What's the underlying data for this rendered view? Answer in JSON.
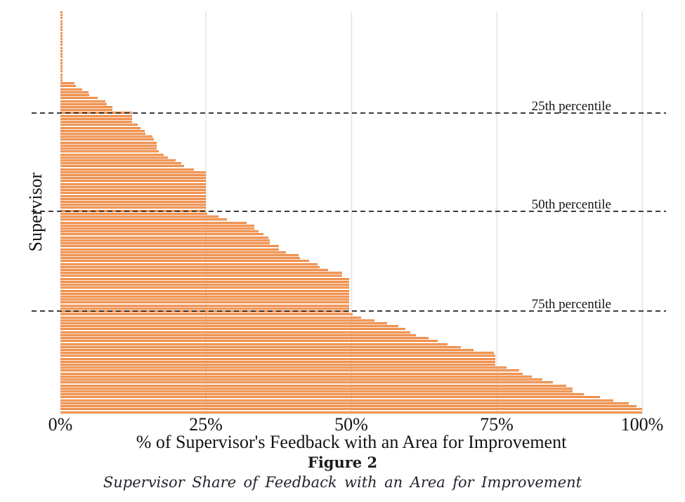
{
  "figure": {
    "figure_label": "Figure 2",
    "caption": "Supervisor Share of Feedback with an Area for Improvement"
  },
  "colors": {
    "bar_fill": "#F9B37C",
    "bar_edge": "#E8772B",
    "gridline": "#E9E9E9",
    "reference_line": "#3D3D3D"
  },
  "chart_data": {
    "type": "bar",
    "orientation": "horizontal",
    "title": "",
    "xlabel": "% of Supervisor's Feedback with an Area for Improvement",
    "ylabel": "Supervisor",
    "xlim": [
      0,
      100
    ],
    "grid": "vertical gridlines at x ticks, no panel border",
    "legend": "none",
    "x_ticks": [
      {
        "label": "0%",
        "value": 0
      },
      {
        "label": "25%",
        "value": 25
      },
      {
        "label": "50%",
        "value": 50
      },
      {
        "label": "75%",
        "value": 75
      },
      {
        "label": "100%",
        "value": 100
      }
    ],
    "series_note": "136 supervisors, one thin horizontal bar each, sorted ascending by share; y axis has no tick labels",
    "values_pct": [
      0.3,
      0.3,
      0.3,
      0.3,
      0.3,
      0.3,
      0.3,
      0.3,
      0.3,
      0.3,
      0.3,
      0.3,
      0.3,
      0.3,
      0.3,
      0.3,
      0.3,
      0.3,
      0.3,
      0.3,
      0.3,
      0.3,
      0.3,
      0.3,
      2.4,
      2.7,
      3.7,
      4.8,
      4.9,
      6.4,
      7.7,
      8.0,
      8.9,
      8.9,
      12.3,
      12.3,
      12.3,
      12.3,
      13.3,
      13.8,
      14.5,
      14.6,
      15.8,
      16.1,
      16.5,
      16.5,
      16.5,
      16.9,
      17.8,
      18.5,
      19.8,
      20.8,
      21.3,
      23.0,
      25.0,
      25.0,
      25.0,
      25.0,
      25.0,
      25.0,
      25.0,
      25.0,
      25.0,
      25.0,
      25.0,
      25.0,
      25.0,
      25.0,
      25.2,
      27.2,
      28.6,
      32.0,
      33.3,
      33.3,
      34.0,
      34.9,
      35.7,
      36.0,
      36.0,
      37.5,
      37.5,
      38.8,
      41.0,
      41.2,
      42.7,
      44.2,
      44.6,
      46.0,
      48.4,
      48.4,
      49.6,
      49.6,
      49.6,
      49.6,
      49.6,
      49.6,
      49.6,
      49.6,
      49.6,
      49.6,
      49.6,
      49.6,
      50.2,
      51.7,
      54.0,
      56.2,
      58.1,
      59.3,
      60.1,
      61.1,
      63.3,
      64.9,
      66.5,
      68.9,
      71.0,
      74.5,
      74.8,
      74.8,
      74.8,
      74.8,
      76.7,
      78.9,
      79.5,
      81.0,
      82.9,
      84.7,
      86.9,
      88.0,
      88.1,
      90.0,
      92.8,
      95.0,
      97.7,
      99.0,
      100.0,
      100.0
    ],
    "reference_lines": [
      {
        "label": "25th percentile",
        "at_value_pct": 12.3,
        "position_fraction": 0.253
      },
      {
        "label": "50th percentile",
        "at_value_pct": 25.0,
        "position_fraction": 0.498
      },
      {
        "label": "75th percentile",
        "at_value_pct": 49.6,
        "position_fraction": 0.746
      }
    ]
  }
}
